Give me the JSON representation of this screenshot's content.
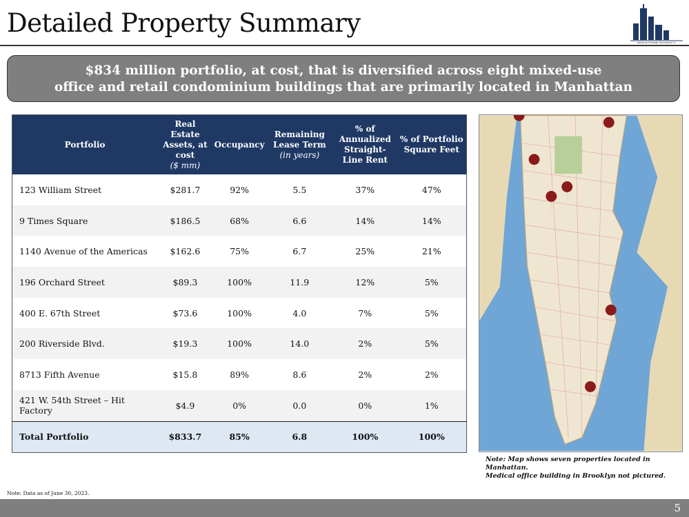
{
  "header": {
    "title": "Detailed Property Summary",
    "logo_text": "American Strategic Investment Co."
  },
  "banner": [
    "$834 million portfolio, at cost, that is diversified across eight mixed-use",
    "office and retail condominium buildings that are primarily located in Manhattan"
  ],
  "table": {
    "columns": [
      {
        "label": "Portfolio"
      },
      {
        "label": "Real Estate Assets, at cost",
        "sub": "($ mm)"
      },
      {
        "label": "Occupancy"
      },
      {
        "label": "Remaining Lease Term",
        "sub": "(in years)"
      },
      {
        "label": "% of Annualized Straight-Line Rent"
      },
      {
        "label": "% of Portfolio Square Feet"
      }
    ],
    "rows": [
      [
        "123 William Street",
        "$281.7",
        "92%",
        "5.5",
        "37%",
        "47%"
      ],
      [
        "9 Times Square",
        "$186.5",
        "68%",
        "6.6",
        "14%",
        "14%"
      ],
      [
        "1140 Avenue of the Americas",
        "$162.6",
        "75%",
        "6.7",
        "25%",
        "21%"
      ],
      [
        "196 Orchard Street",
        "$89.3",
        "100%",
        "11.9",
        "12%",
        "5%"
      ],
      [
        "400 E. 67th Street",
        "$73.6",
        "100%",
        "4.0",
        "7%",
        "5%"
      ],
      [
        "200 Riverside Blvd.",
        "$19.3",
        "100%",
        "14.0",
        "2%",
        "5%"
      ],
      [
        "8713 Fifth Avenue",
        "$15.8",
        "89%",
        "8.6",
        "2%",
        "2%"
      ],
      [
        "421 W. 54th Street – Hit Factory",
        "$4.9",
        "0%",
        "0.0",
        "0%",
        "1%"
      ]
    ],
    "total": [
      "Total Portfolio",
      "$833.7",
      "85%",
      "6.8",
      "100%",
      "100%"
    ]
  },
  "map_note": [
    "Note: Map shows seven properties located in Manhattan.",
    "Medical office building in Brooklyn not pictured."
  ],
  "footnote": "Note: Data as of June 30, 2023.",
  "page_number": "5"
}
